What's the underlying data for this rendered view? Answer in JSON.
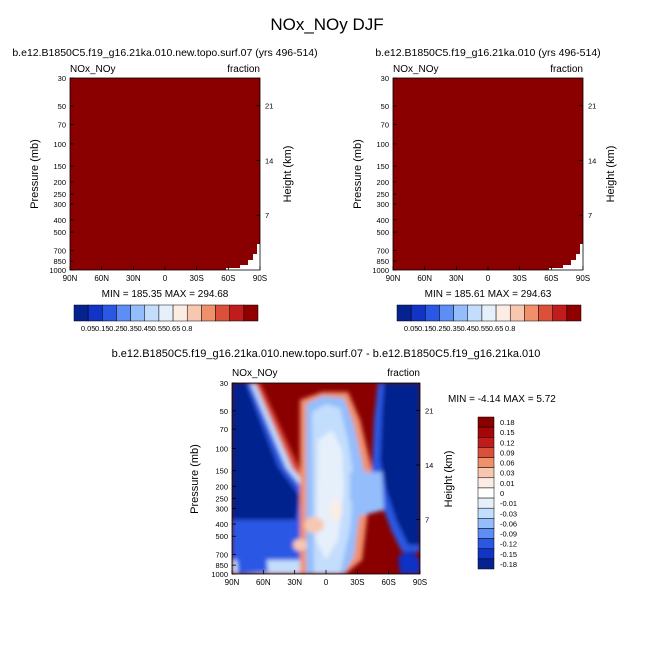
{
  "title": "NOx_NOy DJF",
  "colors": {
    "fill_max": "#8a0000",
    "panel_bg": "#ffffff",
    "ratio_scale": [
      "#06228e",
      "#1133c6",
      "#2a58e4",
      "#5d8ef6",
      "#94bdfb",
      "#c3ddfc",
      "#e6f0fb",
      "#fcede4",
      "#f8c7b0",
      "#f0906b",
      "#dc503a",
      "#c21b1b",
      "#900000"
    ],
    "diff_scale": [
      "#06228e",
      "#1133c6",
      "#2a58e4",
      "#5d8ef6",
      "#94bdfb",
      "#c3ddfc",
      "#e6f0fb",
      "#ffffff",
      "#fcede4",
      "#f8c7b0",
      "#f0906b",
      "#dc503a",
      "#c21b1b",
      "#a70606",
      "#8a0000"
    ]
  },
  "chart_data": [
    {
      "type": "heatmap",
      "title": "b.e12.B1850C5.f19_g16.21ka.010.new.topo.surf.07 (yrs 496-514)",
      "left_label": "NOx_NOy",
      "right_label": "fraction",
      "xlabel": "",
      "ylabel": "Pressure (mb)",
      "y2label": "Height (km)",
      "x_ticks": [
        "90N",
        "60N",
        "30N",
        "0",
        "30S",
        "60S",
        "90S"
      ],
      "x_range": [
        90,
        -90
      ],
      "y_ticks": [
        30,
        50,
        70,
        100,
        150,
        200,
        250,
        300,
        400,
        500,
        700,
        850,
        1000
      ],
      "y_range": [
        30,
        1000
      ],
      "y_scale": "log",
      "y2_ticks": [
        21,
        14,
        7
      ],
      "min": 185.35,
      "max": 294.68,
      "stats_text": "MIN = 185.35  MAX = 294.68",
      "field": "entire domain at top color class (>0.8); surface missing near 90S",
      "colorbar_labels": [
        "0.05",
        "0.15",
        "0.25",
        "0.35",
        "0.45",
        "0.55",
        "0.65",
        "0.8"
      ]
    },
    {
      "type": "heatmap",
      "title": "b.e12.B1850C5.f19_g16.21ka.010 (yrs 496-514)",
      "left_label": "NOx_NOy",
      "right_label": "fraction",
      "xlabel": "",
      "ylabel": "Pressure (mb)",
      "y2label": "Height (km)",
      "x_ticks": [
        "90N",
        "60N",
        "30N",
        "0",
        "30S",
        "60S",
        "90S"
      ],
      "x_range": [
        90,
        -90
      ],
      "y_ticks": [
        30,
        50,
        70,
        100,
        150,
        200,
        250,
        300,
        400,
        500,
        700,
        850,
        1000
      ],
      "y_range": [
        30,
        1000
      ],
      "y_scale": "log",
      "y2_ticks": [
        21,
        14,
        7
      ],
      "min": 185.61,
      "max": 294.63,
      "stats_text": "MIN = 185.61  MAX = 294.63",
      "field": "entire domain at top color class (>0.8); surface missing near 90S",
      "colorbar_labels": [
        "0.05",
        "0.15",
        "0.25",
        "0.35",
        "0.45",
        "0.55",
        "0.65",
        "0.8"
      ]
    },
    {
      "type": "heatmap",
      "title": "b.e12.B1850C5.f19_g16.21ka.010.new.topo.surf.07 - b.e12.B1850C5.f19_g16.21ka.010",
      "left_label": "NOx_NOy",
      "right_label": "fraction",
      "xlabel": "",
      "ylabel": "Pressure (mb)",
      "y2label": "Height (km)",
      "x_ticks": [
        "90N",
        "60N",
        "30N",
        "0",
        "30S",
        "60S",
        "90S"
      ],
      "x_range": [
        90,
        -90
      ],
      "y_ticks": [
        30,
        50,
        70,
        100,
        150,
        200,
        250,
        300,
        400,
        500,
        700,
        850,
        1000
      ],
      "y_range": [
        30,
        1000
      ],
      "y_scale": "log",
      "y2_ticks": [
        21,
        14,
        7
      ],
      "min": -4.14,
      "max": 5.72,
      "stats_text": "MIN =  -4.14  MAX =   5.72",
      "colorbar_labels": [
        "0.18",
        "0.15",
        "0.12",
        "0.09",
        "0.06",
        "0.03",
        "0.01",
        "0",
        "-0.01",
        "-0.03",
        "-0.06",
        "-0.09",
        "-0.12",
        "-0.15",
        "-0.18"
      ],
      "regions": [
        {
          "value": 0.18,
          "desc": "background red (>0.18)"
        },
        {
          "value": -0.18,
          "desc": "blue diagonal band from 90N/30mb toward 30N/400mb"
        },
        {
          "value": -0.18,
          "desc": "blue column 60S-90S above 700mb"
        },
        {
          "value": -0.09,
          "desc": "light blue/white lobe 30N-30S, 150-1000mb"
        },
        {
          "value": 0.06,
          "desc": "pink patches near equator 300-700mb"
        }
      ]
    }
  ]
}
